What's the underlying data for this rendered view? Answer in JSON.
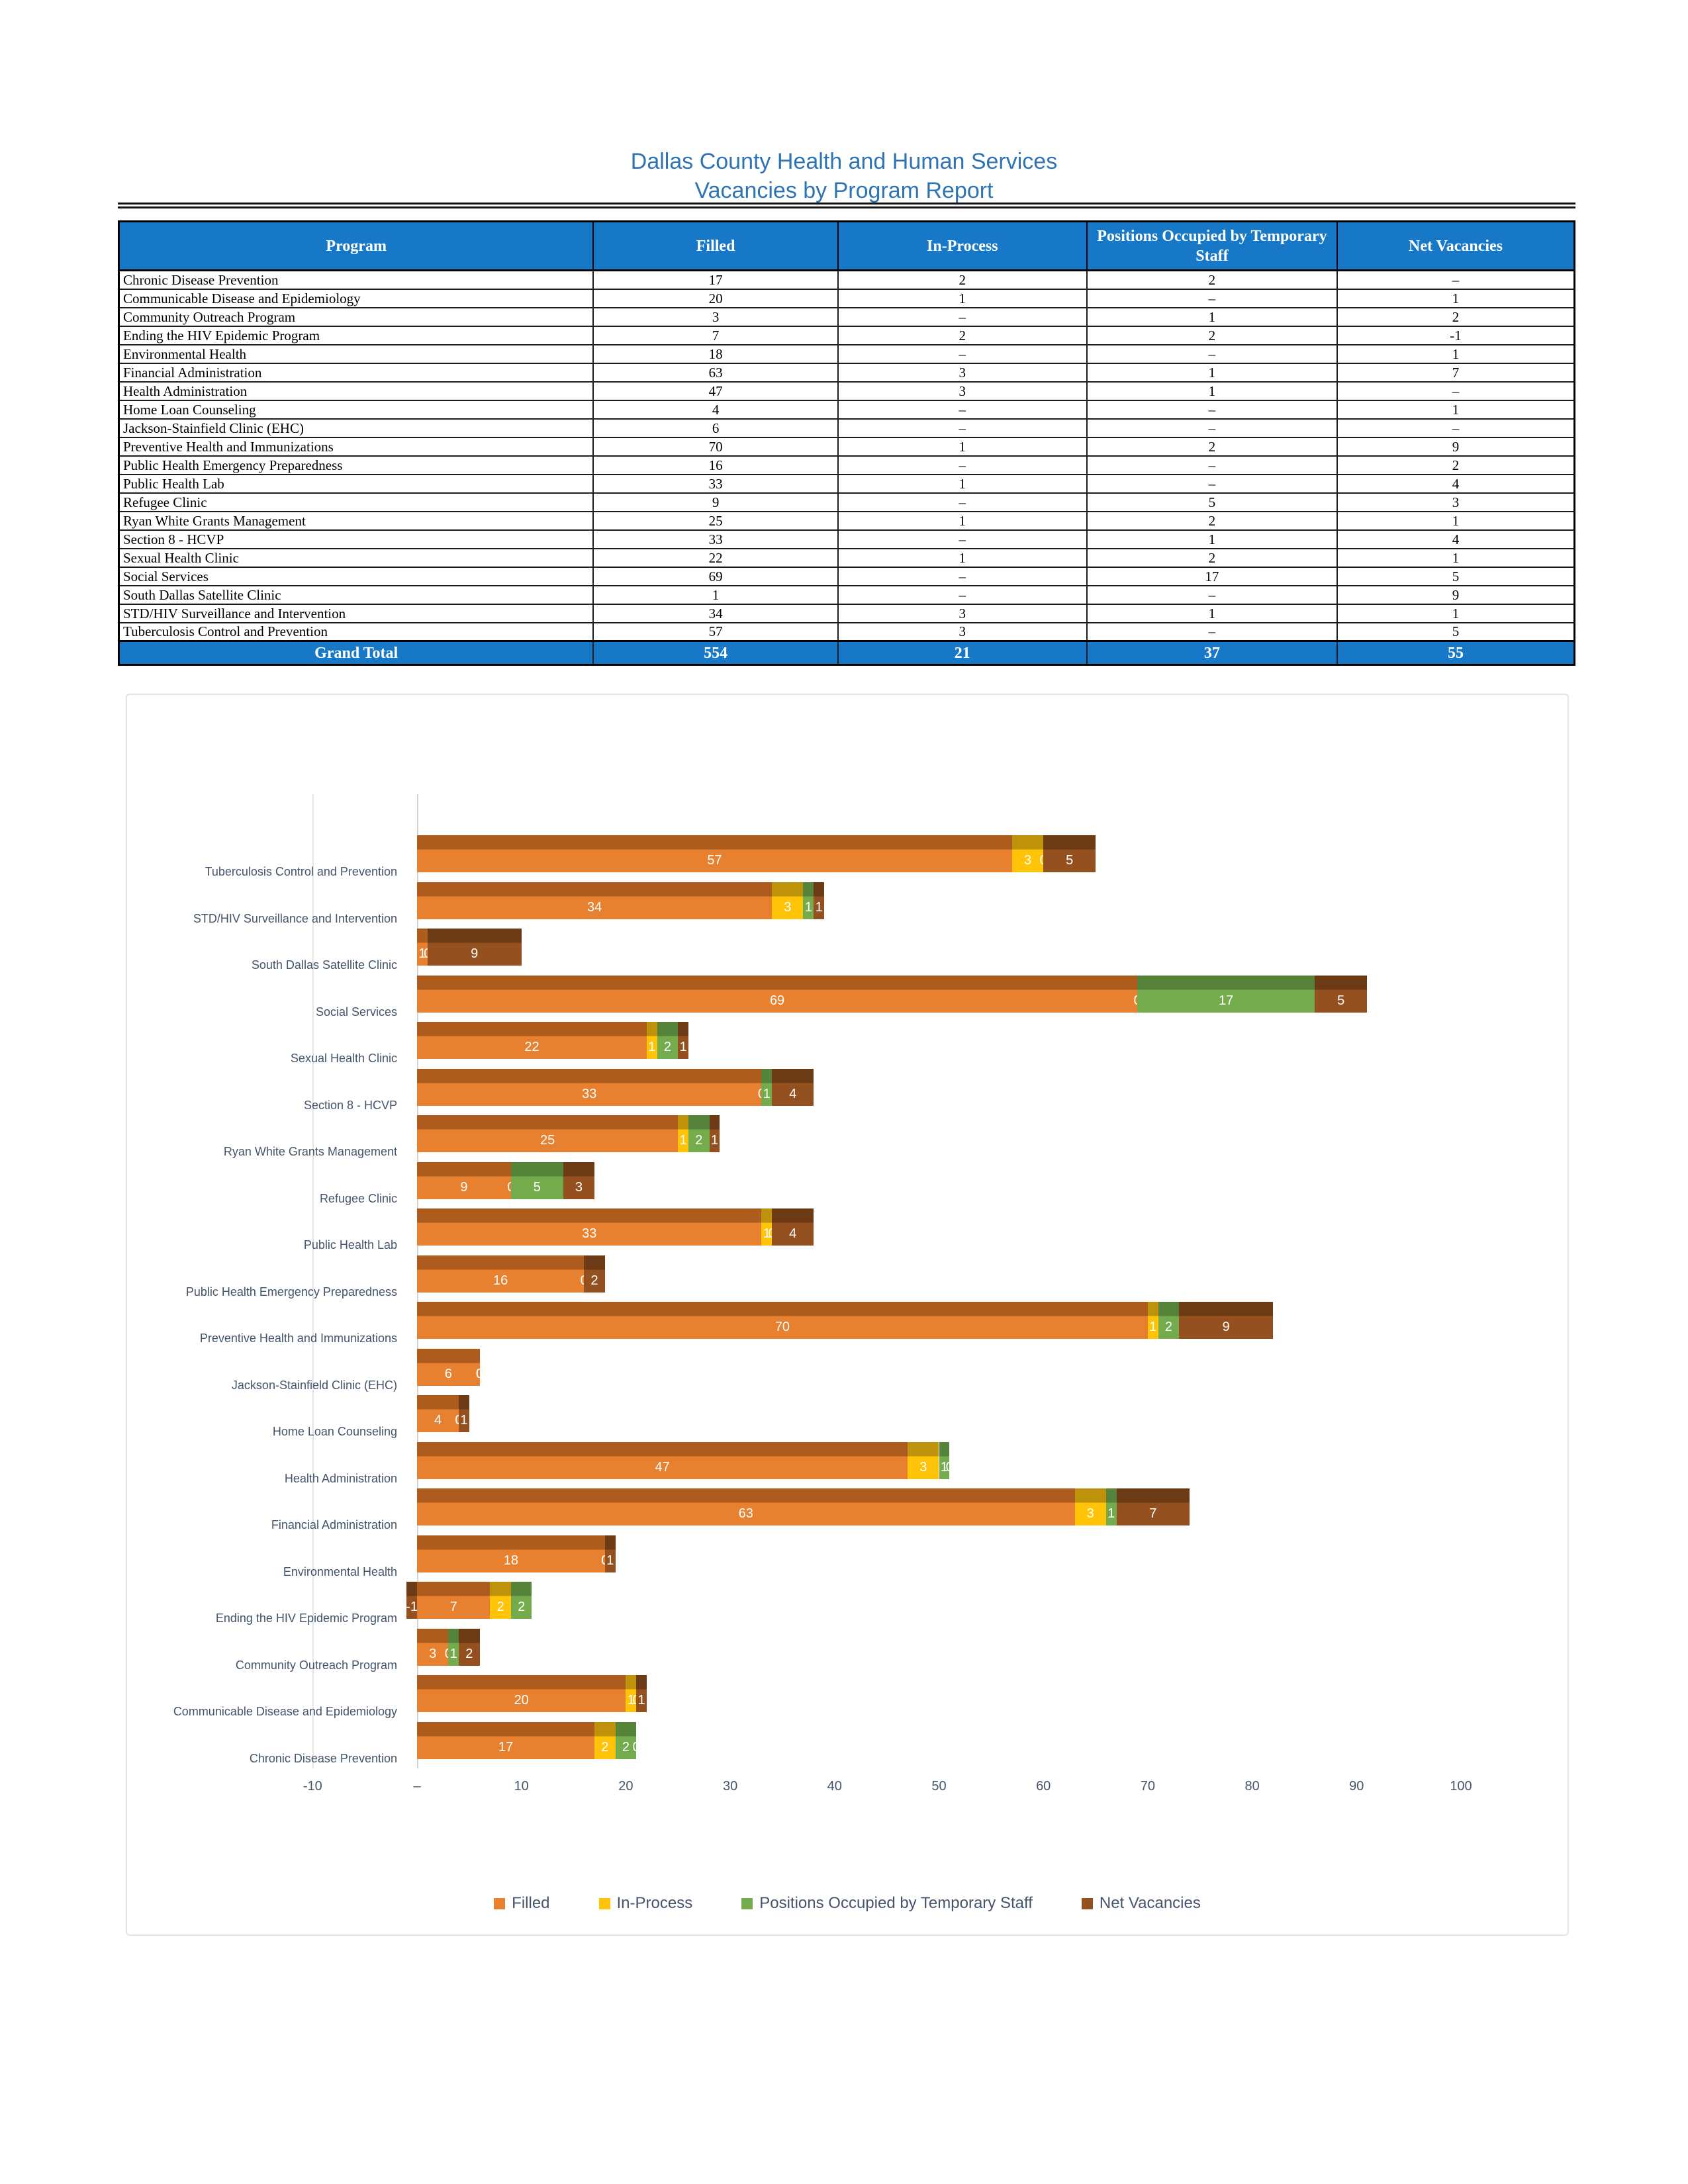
{
  "page": {
    "title_line1": "Dallas County Health and Human Services",
    "title_line2": "Vacancies by Program Report"
  },
  "table": {
    "header_bg": "#1878C8",
    "headers": [
      "Program",
      "Filled",
      "In-Process",
      "Positions Occupied by Temporary Staff",
      "Net Vacancies"
    ],
    "rows": [
      [
        "Chronic Disease Prevention",
        "17",
        "2",
        "2",
        "–"
      ],
      [
        "Communicable Disease and Epidemiology",
        "20",
        "1",
        "–",
        "1"
      ],
      [
        "Community Outreach Program",
        "3",
        "–",
        "1",
        "2"
      ],
      [
        "Ending the HIV Epidemic Program",
        "7",
        "2",
        "2",
        "-1"
      ],
      [
        "Environmental Health",
        "18",
        "–",
        "–",
        "1"
      ],
      [
        "Financial Administration",
        "63",
        "3",
        "1",
        "7"
      ],
      [
        "Health Administration",
        "47",
        "3",
        "1",
        "–"
      ],
      [
        "Home Loan Counseling",
        "4",
        "–",
        "–",
        "1"
      ],
      [
        "Jackson-Stainfield Clinic (EHC)",
        "6",
        "–",
        "–",
        "–"
      ],
      [
        "Preventive Health and Immunizations",
        "70",
        "1",
        "2",
        "9"
      ],
      [
        "Public Health Emergency Preparedness",
        "16",
        "–",
        "–",
        "2"
      ],
      [
        "Public Health Lab",
        "33",
        "1",
        "–",
        "4"
      ],
      [
        "Refugee Clinic",
        "9",
        "–",
        "5",
        "3"
      ],
      [
        "Ryan White Grants Management",
        "25",
        "1",
        "2",
        "1"
      ],
      [
        "Section 8 - HCVP",
        "33",
        "–",
        "1",
        "4"
      ],
      [
        "Sexual Health Clinic",
        "22",
        "1",
        "2",
        "1"
      ],
      [
        "Social Services",
        "69",
        "–",
        "17",
        "5"
      ],
      [
        "South Dallas Satellite Clinic",
        "1",
        "–",
        "–",
        "9"
      ],
      [
        "STD/HIV Surveillance and Intervention",
        "34",
        "3",
        "1",
        "1"
      ],
      [
        "Tuberculosis Control and Prevention",
        "57",
        "3",
        "–",
        "5"
      ]
    ],
    "grand_total": [
      "Grand Total",
      "554",
      "21",
      "37",
      "55"
    ]
  },
  "chart_data": {
    "type": "bar",
    "orientation": "horizontal-stacked",
    "style": "3d",
    "categories": [
      "Tuberculosis Control and Prevention",
      "STD/HIV Surveillance and Intervention",
      "South Dallas Satellite Clinic",
      "Social Services",
      "Sexual Health Clinic",
      "Section 8 - HCVP",
      "Ryan White Grants Management",
      "Refugee Clinic",
      "Public Health Lab",
      "Public Health Emergency Preparedness",
      "Preventive Health and Immunizations",
      "Jackson-Stainfield Clinic (EHC)",
      "Home Loan Counseling",
      "Health Administration",
      "Financial Administration",
      "Environmental Health",
      "Ending the HIV Epidemic Program",
      "Community Outreach Program",
      "Communicable Disease and Epidemiology",
      "Chronic Disease Prevention"
    ],
    "series": [
      {
        "name": "Filled",
        "color": "#E8812F",
        "dark": "#AE5B1E",
        "values": [
          57,
          34,
          1,
          69,
          22,
          33,
          25,
          9,
          33,
          16,
          70,
          6,
          4,
          47,
          63,
          18,
          7,
          3,
          20,
          17
        ]
      },
      {
        "name": "In-Process",
        "color": "#FFC408",
        "dark": "#BE920A",
        "values": [
          3,
          3,
          0,
          0,
          1,
          0,
          1,
          0,
          1,
          0,
          1,
          0,
          0,
          3,
          3,
          0,
          2,
          0,
          1,
          2
        ]
      },
      {
        "name": "Positions Occupied by Temporary Staff",
        "color": "#74AB4D",
        "dark": "#56833A",
        "values": [
          0,
          1,
          0,
          17,
          2,
          1,
          2,
          5,
          0,
          0,
          2,
          0,
          0,
          1,
          1,
          0,
          2,
          1,
          0,
          2
        ]
      },
      {
        "name": "Net Vacancies",
        "color": "#94511F",
        "dark": "#6C3B16",
        "values": [
          5,
          1,
          9,
          5,
          1,
          4,
          1,
          3,
          4,
          2,
          9,
          0,
          1,
          0,
          7,
          1,
          -1,
          2,
          1,
          0
        ]
      }
    ],
    "xlim": [
      -10,
      100
    ],
    "xticks": {
      "values": [
        -10,
        0,
        10,
        20,
        30,
        40,
        50,
        60,
        70,
        80,
        90,
        100
      ],
      "labels": [
        "-10",
        "–",
        "10",
        "20",
        "30",
        "40",
        "50",
        "60",
        "70",
        "80",
        "90",
        "100"
      ]
    },
    "legend": [
      "Filled",
      "In-Process",
      "Positions Occupied by Temporary Staff",
      "Net Vacancies"
    ],
    "legend_position": "bottom-center",
    "grid": "vertical gridlines at -10 and 0"
  }
}
